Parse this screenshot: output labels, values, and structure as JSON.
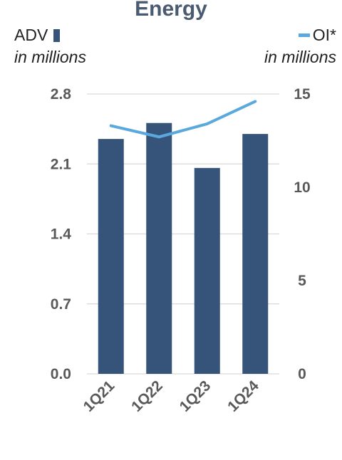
{
  "chart_data": {
    "type": "bar",
    "title": "Energy",
    "categories": [
      "1Q21",
      "1Q22",
      "1Q23",
      "1Q24"
    ],
    "series": [
      {
        "name": "ADV",
        "type": "bar",
        "axis": "left",
        "values": [
          2.35,
          2.51,
          2.06,
          2.4
        ]
      },
      {
        "name": "OI*",
        "type": "line",
        "axis": "right",
        "values": [
          13.3,
          12.7,
          13.4,
          14.6
        ]
      }
    ],
    "y_left": {
      "label": "ADV",
      "unit": "in millions",
      "min": 0,
      "max": 2.8,
      "ticks": [
        "0.0",
        "0.7",
        "1.4",
        "2.1",
        "2.8"
      ]
    },
    "y_right": {
      "label": "OI*",
      "unit": "in millions",
      "min": 0,
      "max": 15,
      "ticks": [
        "0",
        "5",
        "10",
        "15"
      ]
    },
    "grid": true,
    "legend": "top",
    "colors": {
      "bar": "#36537a",
      "line": "#5aa9dd",
      "grid": "#d9d9d9",
      "text": "#595959"
    }
  }
}
